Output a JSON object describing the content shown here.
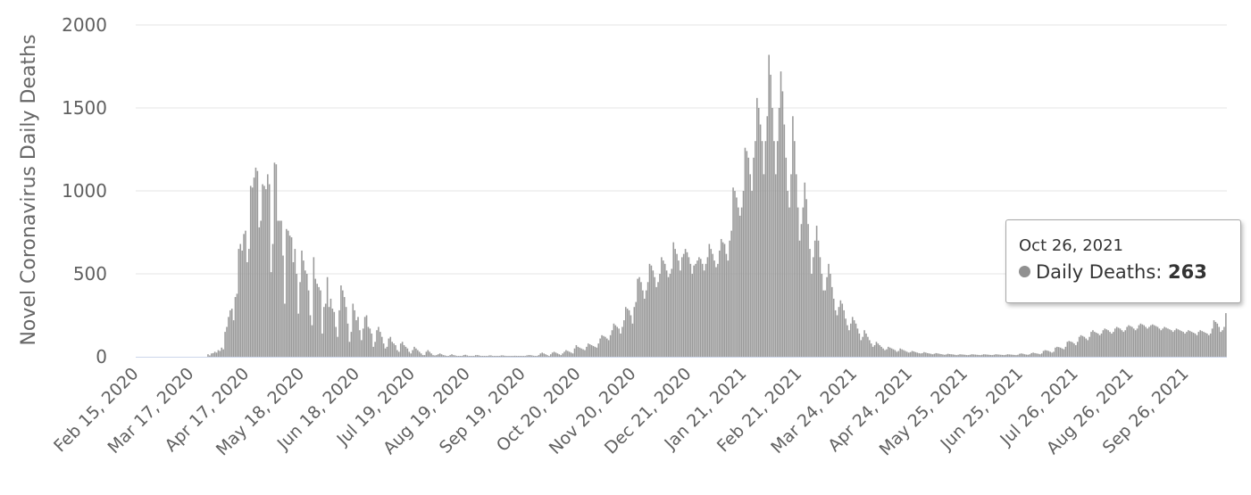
{
  "chart_data": {
    "type": "bar",
    "title": "",
    "xlabel": "",
    "ylabel": "Novel Coronavirus Daily Deaths",
    "ylim": [
      0,
      2000
    ],
    "y_ticks": [
      "0",
      "500",
      "1000",
      "1500",
      "2000"
    ],
    "grid": true,
    "legend": "none",
    "bar_color": "#9a9a9a",
    "start_date": "Feb 15, 2020",
    "x_tick_labels": [
      "Feb 15, 2020",
      "Mar 17, 2020",
      "Apr 17, 2020",
      "May 18, 2020",
      "Jun 18, 2020",
      "Jul 19, 2020",
      "Aug 19, 2020",
      "Sep 19, 2020",
      "Oct 20, 2020",
      "Nov 20, 2020",
      "Dec 21, 2020",
      "Jan 21, 2021",
      "Feb 21, 2021",
      "Mar 24, 2021",
      "Apr 24, 2021",
      "May 25, 2021",
      "Jun 25, 2021",
      "Jul 26, 2021",
      "Aug 26, 2021",
      "Sep 26, 2021"
    ],
    "series": [
      {
        "values": [
          0,
          0,
          0,
          0,
          0,
          0,
          0,
          0,
          0,
          0,
          0,
          0,
          0,
          0,
          0,
          0,
          0,
          0,
          0,
          0,
          0,
          0,
          0,
          0,
          0,
          0,
          0,
          0,
          0,
          0,
          0,
          0,
          0,
          0,
          0,
          0,
          0,
          0,
          0,
          0,
          0,
          0,
          15,
          8,
          20,
          22,
          30,
          25,
          40,
          35,
          55,
          45,
          150,
          180,
          240,
          280,
          290,
          220,
          360,
          380,
          650,
          680,
          640,
          740,
          760,
          570,
          650,
          1030,
          1020,
          1080,
          1140,
          1120,
          780,
          820,
          1040,
          1030,
          1010,
          1100,
          1040,
          510,
          680,
          1170,
          1160,
          820,
          820,
          820,
          610,
          320,
          770,
          760,
          730,
          720,
          570,
          650,
          500,
          260,
          450,
          640,
          580,
          520,
          500,
          400,
          250,
          190,
          600,
          470,
          440,
          420,
          400,
          140,
          300,
          320,
          480,
          300,
          350,
          290,
          270,
          180,
          120,
          280,
          430,
          400,
          360,
          300,
          200,
          90,
          150,
          320,
          280,
          220,
          240,
          160,
          100,
          170,
          240,
          250,
          180,
          170,
          140,
          60,
          90,
          160,
          180,
          150,
          120,
          80,
          50,
          60,
          110,
          120,
          90,
          80,
          70,
          40,
          30,
          80,
          90,
          70,
          60,
          50,
          30,
          20,
          40,
          60,
          50,
          40,
          30,
          20,
          10,
          10,
          30,
          40,
          30,
          20,
          10,
          8,
          10,
          15,
          20,
          15,
          10,
          8,
          5,
          5,
          10,
          15,
          10,
          8,
          5,
          5,
          5,
          5,
          10,
          12,
          8,
          5,
          5,
          5,
          5,
          10,
          10,
          8,
          5,
          5,
          5,
          5,
          5,
          8,
          8,
          5,
          5,
          5,
          5,
          5,
          8,
          8,
          6,
          5,
          5,
          5,
          5,
          5,
          6,
          5,
          5,
          5,
          5,
          5,
          5,
          8,
          10,
          10,
          8,
          6,
          5,
          5,
          10,
          20,
          25,
          20,
          15,
          10,
          5,
          15,
          25,
          30,
          25,
          20,
          15,
          10,
          20,
          30,
          40,
          35,
          30,
          25,
          20,
          50,
          70,
          60,
          55,
          50,
          45,
          40,
          60,
          80,
          75,
          70,
          65,
          60,
          55,
          80,
          110,
          130,
          125,
          120,
          110,
          100,
          130,
          160,
          200,
          190,
          180,
          170,
          140,
          180,
          220,
          300,
          290,
          280,
          250,
          200,
          300,
          330,
          470,
          480,
          450,
          400,
          350,
          400,
          450,
          560,
          550,
          520,
          480,
          420,
          450,
          500,
          600,
          580,
          560,
          520,
          480,
          500,
          530,
          690,
          650,
          620,
          580,
          520,
          600,
          620,
          650,
          630,
          600,
          560,
          500,
          550,
          560,
          580,
          600,
          590,
          560,
          520,
          560,
          600,
          680,
          650,
          620,
          580,
          540,
          560,
          640,
          710,
          690,
          680,
          620,
          580,
          700,
          760,
          1020,
          1000,
          960,
          900,
          850,
          900,
          1000,
          1260,
          1240,
          1200,
          1100,
          1000,
          1200,
          1300,
          1560,
          1500,
          1400,
          1300,
          1100,
          1300,
          1450,
          1820,
          1700,
          1500,
          1300,
          1100,
          1300,
          1500,
          1720,
          1600,
          1400,
          1200,
          1000,
          900,
          1100,
          1450,
          1300,
          1100,
          900,
          700,
          800,
          900,
          1050,
          950,
          800,
          650,
          500,
          600,
          700,
          790,
          700,
          600,
          500,
          400,
          400,
          480,
          560,
          500,
          420,
          350,
          280,
          250,
          300,
          340,
          320,
          280,
          230,
          190,
          160,
          200,
          240,
          220,
          200,
          170,
          140,
          100,
          120,
          160,
          140,
          120,
          100,
          80,
          60,
          70,
          90,
          80,
          70,
          60,
          50,
          40,
          45,
          60,
          55,
          50,
          45,
          40,
          30,
          35,
          50,
          45,
          40,
          35,
          30,
          25,
          28,
          35,
          32,
          28,
          25,
          22,
          20,
          22,
          28,
          25,
          22,
          20,
          18,
          15,
          18,
          22,
          20,
          18,
          16,
          14,
          12,
          14,
          18,
          16,
          15,
          14,
          12,
          10,
          12,
          15,
          14,
          13,
          12,
          10,
          10,
          12,
          15,
          14,
          13,
          12,
          11,
          10,
          12,
          15,
          14,
          13,
          12,
          11,
          10,
          12,
          15,
          14,
          13,
          12,
          11,
          10,
          12,
          15,
          14,
          13,
          12,
          11,
          10,
          12,
          18,
          20,
          18,
          15,
          13,
          12,
          15,
          22,
          25,
          22,
          20,
          18,
          15,
          20,
          35,
          40,
          38,
          35,
          30,
          25,
          30,
          55,
          60,
          58,
          55,
          50,
          45,
          60,
          90,
          95,
          92,
          88,
          80,
          70,
          90,
          120,
          130,
          125,
          120,
          110,
          100,
          120,
          150,
          160,
          150,
          145,
          140,
          130,
          140,
          160,
          170,
          165,
          160,
          150,
          140,
          150,
          170,
          180,
          175,
          170,
          160,
          150,
          160,
          180,
          190,
          185,
          180,
          170,
          160,
          170,
          190,
          200,
          195,
          190,
          180,
          170,
          180,
          190,
          195,
          190,
          185,
          180,
          170,
          160,
          170,
          180,
          175,
          170,
          165,
          160,
          150,
          160,
          170,
          165,
          160,
          155,
          150,
          140,
          150,
          160,
          155,
          150,
          145,
          140,
          130,
          150,
          160,
          155,
          150,
          145,
          140,
          130,
          140,
          170,
          220,
          210,
          200,
          180,
          150,
          160,
          180,
          263
        ]
      }
    ],
    "tooltip": {
      "date": "Oct 26, 2021",
      "series_label": "Daily Deaths:",
      "value": "263"
    }
  }
}
